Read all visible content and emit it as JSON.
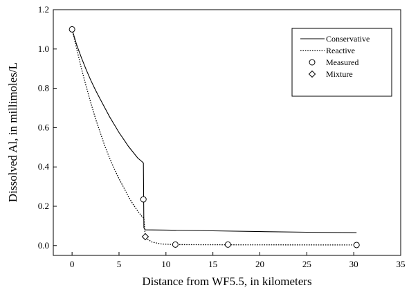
{
  "chart_data": {
    "type": "line",
    "title": "",
    "xlabel": "Distance from WF5.5, in kilometers",
    "ylabel": "Dissolved Al, in millimoles/L",
    "xlim": [
      -2,
      35
    ],
    "ylim": [
      -0.05,
      1.2
    ],
    "x_ticks": [
      0,
      5,
      10,
      15,
      20,
      25,
      30,
      35
    ],
    "y_ticks": [
      0.0,
      0.2,
      0.4,
      0.6,
      0.8,
      1.0,
      1.2
    ],
    "grid": false,
    "legend_position": "top-right",
    "series": [
      {
        "name": "Conservative",
        "kind": "line",
        "style": "solid",
        "x": [
          0,
          0.5,
          1,
          1.5,
          2,
          2.5,
          3,
          3.5,
          4,
          4.5,
          5,
          5.5,
          6,
          6.5,
          7,
          7.5,
          7.6,
          7.65,
          7.8,
          10,
          15,
          20,
          25,
          30.3
        ],
        "y": [
          1.1,
          1.02,
          0.955,
          0.895,
          0.84,
          0.79,
          0.745,
          0.7,
          0.655,
          0.615,
          0.575,
          0.54,
          0.505,
          0.475,
          0.445,
          0.425,
          0.42,
          0.09,
          0.08,
          0.079,
          0.075,
          0.071,
          0.068,
          0.065
        ]
      },
      {
        "name": "Reactive",
        "kind": "line",
        "style": "dotted",
        "x": [
          0,
          0.5,
          1,
          1.5,
          2,
          2.5,
          3,
          3.5,
          4,
          4.5,
          5,
          5.5,
          6,
          6.5,
          7,
          7.5,
          7.65,
          7.8,
          8.5,
          9.5,
          11,
          16.5,
          30.3
        ],
        "y": [
          1.1,
          1.0,
          0.9,
          0.81,
          0.725,
          0.645,
          0.575,
          0.505,
          0.445,
          0.39,
          0.34,
          0.295,
          0.25,
          0.21,
          0.175,
          0.145,
          0.14,
          0.04,
          0.018,
          0.008,
          0.005,
          0.004,
          0.003
        ]
      },
      {
        "name": "Measured",
        "kind": "marker",
        "marker": "circle",
        "x": [
          0,
          7.6,
          11,
          16.6,
          30.3
        ],
        "y": [
          1.1,
          0.235,
          0.005,
          0.005,
          0.003
        ]
      },
      {
        "name": "Mixture",
        "kind": "marker",
        "marker": "diamond",
        "x": [
          7.8
        ],
        "y": [
          0.045
        ]
      }
    ]
  }
}
